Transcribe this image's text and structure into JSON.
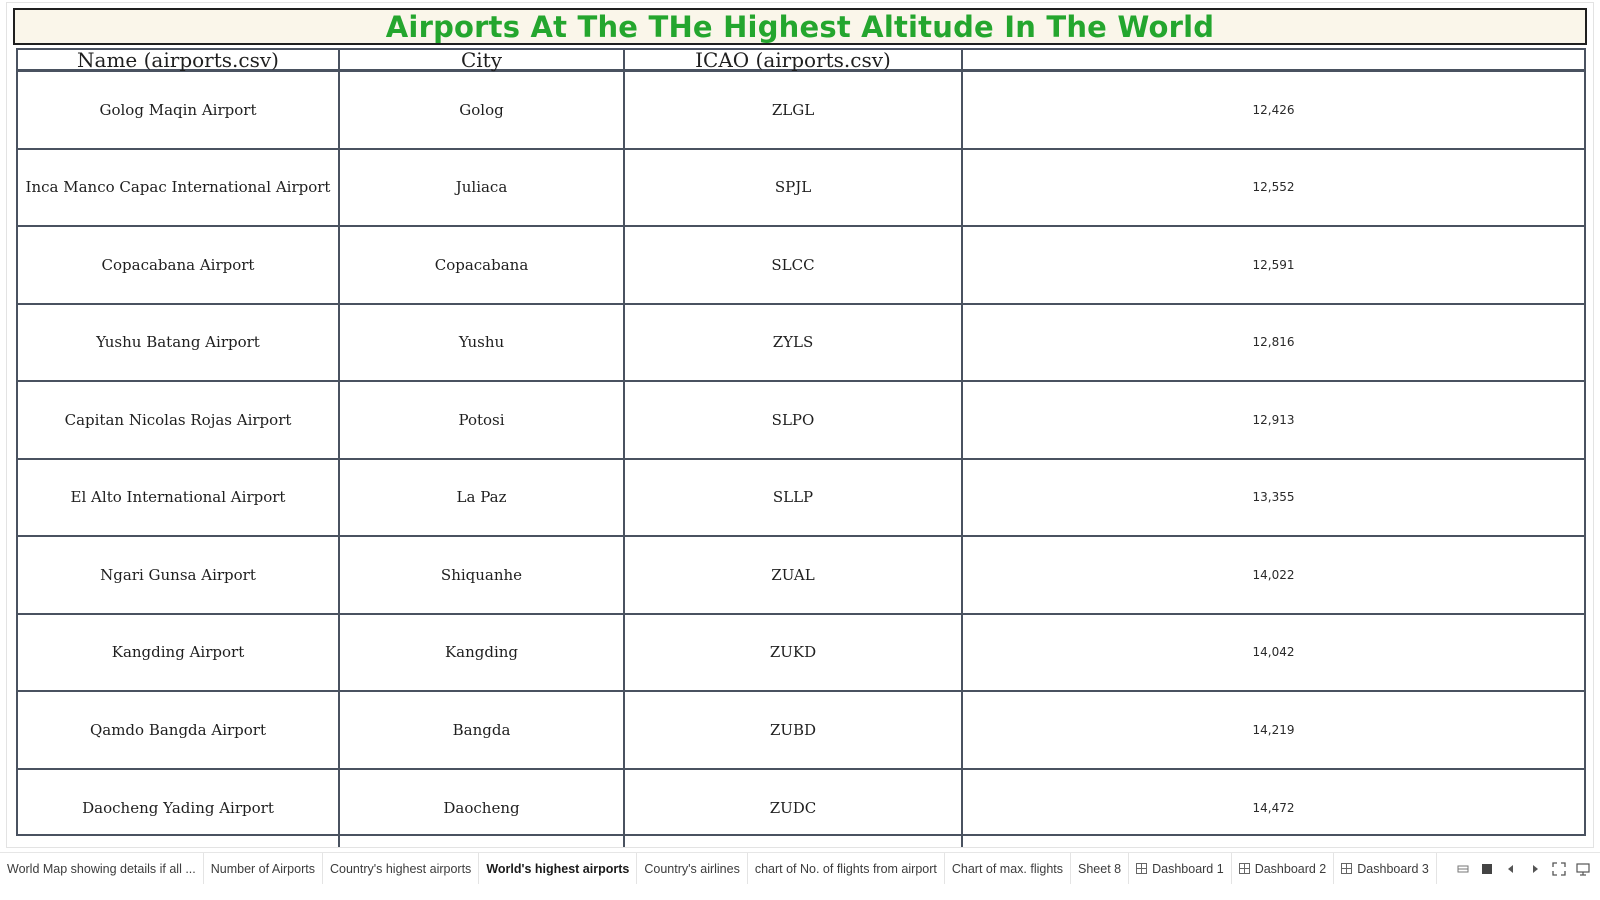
{
  "title": "Airports At The THe Highest Altitude In The World",
  "table": {
    "headers": [
      "Name (airports.csv)",
      "City",
      "ICAO (airports.csv)",
      ""
    ],
    "rows": [
      {
        "name": "Golog Maqin Airport",
        "city": "Golog",
        "icao": "ZLGL",
        "altitude": "12,426"
      },
      {
        "name": "Inca Manco Capac International Airport",
        "city": "Juliaca",
        "icao": "SPJL",
        "altitude": "12,552"
      },
      {
        "name": "Copacabana Airport",
        "city": "Copacabana",
        "icao": "SLCC",
        "altitude": "12,591"
      },
      {
        "name": "Yushu Batang Airport",
        "city": "Yushu",
        "icao": "ZYLS",
        "altitude": "12,816"
      },
      {
        "name": "Capitan Nicolas Rojas Airport",
        "city": "Potosi",
        "icao": "SLPO",
        "altitude": "12,913"
      },
      {
        "name": "El Alto International Airport",
        "city": "La Paz",
        "icao": "SLLP",
        "altitude": "13,355"
      },
      {
        "name": "Ngari Gunsa Airport",
        "city": "Shiquanhe",
        "icao": "ZUAL",
        "altitude": "14,022"
      },
      {
        "name": "Kangding Airport",
        "city": "Kangding",
        "icao": "ZUKD",
        "altitude": "14,042"
      },
      {
        "name": "Qamdo Bangda Airport",
        "city": "Bangda",
        "icao": "ZUBD",
        "altitude": "14,219"
      },
      {
        "name": "Daocheng Yading Airport",
        "city": "Daocheng",
        "icao": "ZUDC",
        "altitude": "14,472"
      }
    ]
  },
  "tabs": [
    {
      "label": "World Map showing details if all ...",
      "type": "sheet",
      "active": false
    },
    {
      "label": "Number of Airports",
      "type": "sheet",
      "active": false
    },
    {
      "label": "Country's highest airports",
      "type": "sheet",
      "active": false
    },
    {
      "label": "World's highest airports",
      "type": "sheet",
      "active": true
    },
    {
      "label": "Country's airlines",
      "type": "sheet",
      "active": false
    },
    {
      "label": "chart of No. of flights from airport",
      "type": "sheet",
      "active": false
    },
    {
      "label": "Chart of max. flights",
      "type": "sheet",
      "active": false
    },
    {
      "label": "Sheet 8",
      "type": "sheet",
      "active": false
    },
    {
      "label": "Dashboard 1",
      "type": "dashboard",
      "active": false
    },
    {
      "label": "Dashboard 2",
      "type": "dashboard",
      "active": false
    },
    {
      "label": "Dashboard 3",
      "type": "dashboard",
      "active": false
    }
  ],
  "controls": [
    "show-filmstrip-icon",
    "show-sheet-sorter-icon",
    "scroll-left-icon",
    "scroll-right-icon",
    "fullscreen-icon",
    "presentation-mode-icon"
  ],
  "colors": {
    "title_text": "#24a62e",
    "title_bg": "#faf6ea",
    "grid_lines": "#4a5260"
  }
}
